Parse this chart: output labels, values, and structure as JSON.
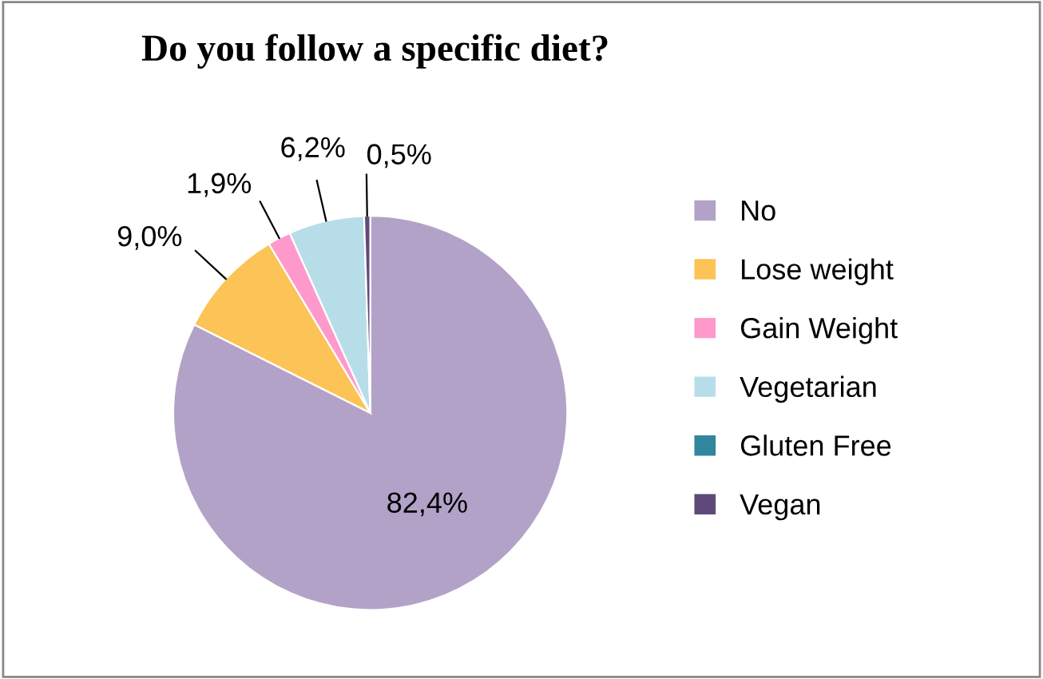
{
  "chart_data": {
    "type": "pie",
    "title": "Do you follow a specific diet?",
    "categories": [
      "No",
      "Lose weight",
      "Gain Weight",
      "Vegetarian",
      "Gluten Free",
      "Vegan"
    ],
    "values": [
      82.4,
      9.0,
      1.9,
      6.2,
      0,
      0.5
    ],
    "value_labels": [
      "82,4%",
      "9,0%",
      "1,9%",
      "6,2%",
      null,
      "0,5%"
    ],
    "colors": [
      "#b3a2c7",
      "#fcc456",
      "#ff99cc",
      "#b7dee8",
      "#31859c",
      "#604a7b"
    ],
    "legend": "right"
  }
}
